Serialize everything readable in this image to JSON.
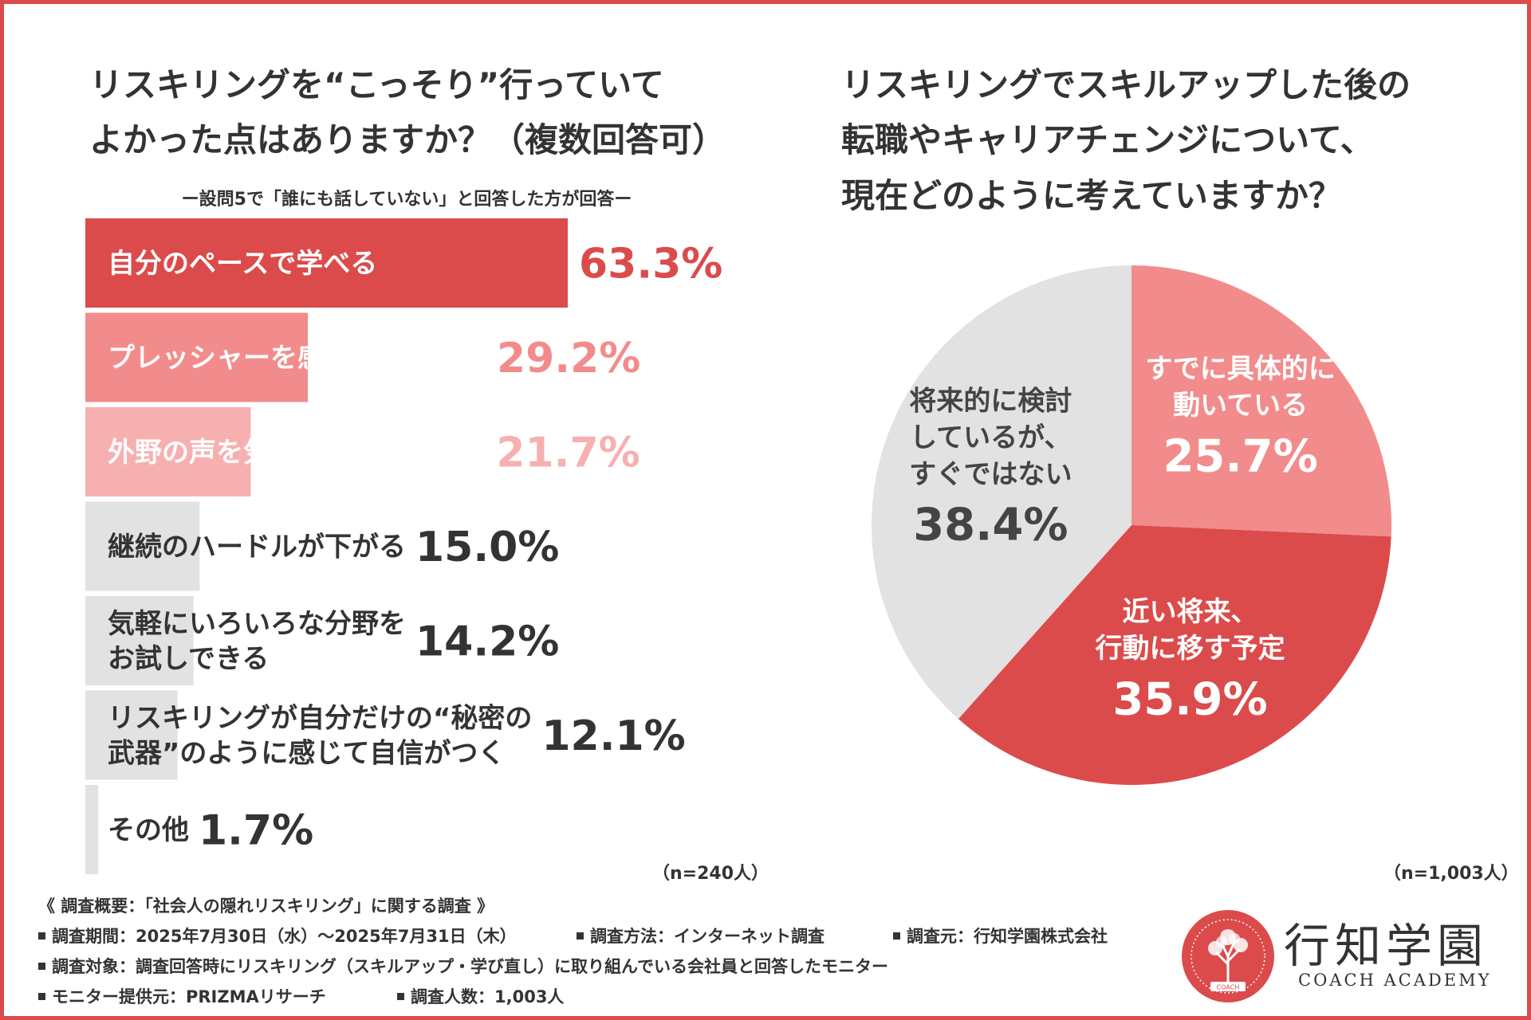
{
  "left": {
    "title_lines": [
      "リスキリングを“こっそり”行っていて",
      "よかった点はありますか？（複数回答可）"
    ],
    "subnote": "ー設問5で「誰にも話していない」と回答した方が回答ー",
    "n_note": "（n=240人）"
  },
  "right": {
    "title_lines": [
      "リスキリングでスキルアップした後の",
      "転職やキャリアチェンジについて、",
      "現在どのように考えていますか？"
    ],
    "n_note": "（n=1,003人）"
  },
  "colors": {
    "dark_red": "#db4b4b",
    "pink": "#f28c8c",
    "light_pink": "#f7b0b0",
    "gray": "#e2e2e2",
    "frame": "#db4b4b"
  },
  "chart_data": [
    {
      "type": "bar",
      "orientation": "horizontal",
      "categories": [
        [
          "自分のペースで学べる"
        ],
        [
          "プレッシャーを感じずに学べる"
        ],
        [
          "外野の声を気にせず集中できる"
        ],
        [
          "継続のハードルが下がる"
        ],
        [
          "気軽にいろいろな分野を",
          "お試しできる"
        ],
        [
          "リスキリングが自分だけの“秘密の",
          "武器”のように感じて自信がつく"
        ],
        [
          "その他"
        ]
      ],
      "values": [
        63.3,
        29.2,
        21.7,
        15.0,
        14.2,
        12.1,
        1.7
      ],
      "value_labels": [
        "63.3%",
        "29.2%",
        "21.7%",
        "15.0%",
        "14.2%",
        "12.1%",
        "1.7%"
      ],
      "bar_colors": [
        "#db4b4b",
        "#f28c8c",
        "#f7b0b0",
        "#e2e2e2",
        "#e2e2e2",
        "#e2e2e2",
        "#e2e2e2"
      ],
      "label_colors": [
        "#ffffff",
        "#ffffff",
        "#ffffff",
        "#333333",
        "#333333",
        "#333333",
        "#333333"
      ],
      "value_colors": [
        "#db4b4b",
        "#f28c8c",
        "#f7b0b0",
        "#333333",
        "#333333",
        "#333333",
        "#333333"
      ],
      "xlim": [
        0,
        63.3
      ]
    },
    {
      "type": "pie",
      "start": "12 o'clock, clockwise",
      "slices": [
        {
          "label": [
            "すでに具体的に",
            "動いている"
          ],
          "value": 25.7,
          "value_label": "25.7%",
          "color": "#f28c8c",
          "text_color": "#ffffff"
        },
        {
          "label": [
            "近い将来、",
            "行動に移す予定"
          ],
          "value": 35.9,
          "value_label": "35.9%",
          "color": "#db4b4b",
          "text_color": "#ffffff"
        },
        {
          "label": [
            "将来的に検討",
            "しているが、",
            "すぐではない"
          ],
          "value": 38.4,
          "value_label": "38.4%",
          "color": "#e2e2e2",
          "text_color": "#444444"
        }
      ]
    }
  ],
  "footer": {
    "overview": "《 調査概要：「社会人の隠れリスキリング」に関する調査 》",
    "period": "調査期間：2025年7月30日（水）〜2025年7月31日（木）",
    "method": "調査方法：インターネット調査",
    "source": "調査元：行知学園株式会社",
    "target": "調査対象：調査回答時にリスキリング（スキルアップ・学び直し）に取り組んでいる会社員と回答したモニター",
    "provider": "モニター提供元：PRIZMAリサーチ",
    "count": "調査人数：1,003人"
  },
  "logo": {
    "name": "行知学園",
    "sub": "COACH ACADEMY",
    "mark_text": "COACH"
  }
}
